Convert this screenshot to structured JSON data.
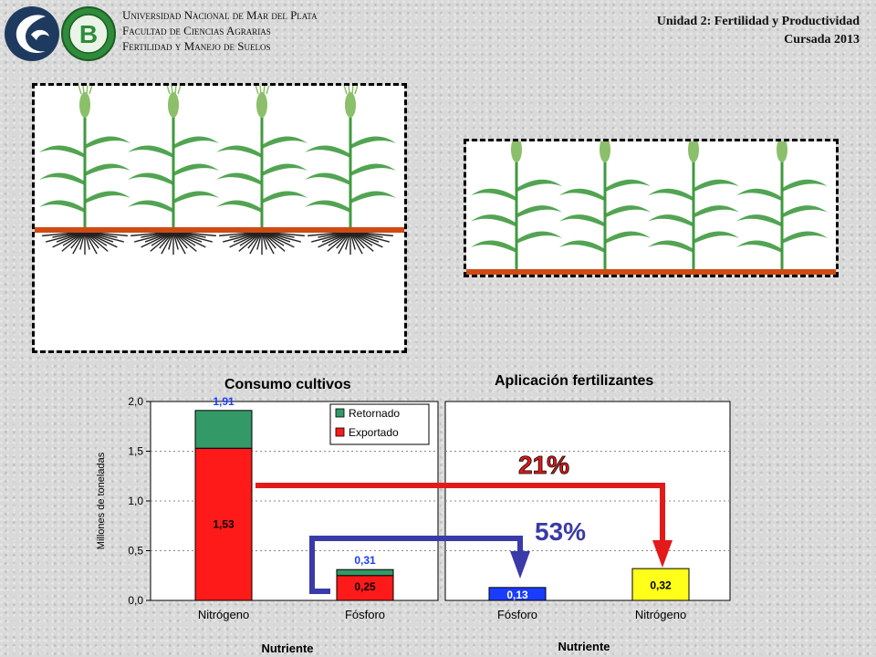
{
  "header": {
    "university": "Universidad Nacional de Mar del Plata",
    "faculty": "Facultad de Ciencias Agrarias",
    "department": "Fertilidad y Manejo de Suelos",
    "unit": "Unidad 2: Fertilidad y Productividad",
    "course": "Cursada 2013"
  },
  "logos": {
    "left": "unmdp-wave-logo",
    "right": "fca-seal-logo",
    "right_letter": "B"
  },
  "illustration": {
    "left_panel": "crop-plants-with-roots",
    "right_panel": "crop-plants-without-roots",
    "plant_color": "#3f9a3f",
    "soil_line_color": "#d04a14"
  },
  "annotations": {
    "arrow_red_label": "21%",
    "arrow_blue_label": "53%",
    "red_color": "#e31a1a",
    "blue_color": "#3a3aa8"
  },
  "chart_data": [
    {
      "type": "bar",
      "title": "Consumo cultivos",
      "xlabel": "Nutriente",
      "ylabel": "Millones de toneladas",
      "ylim": [
        0,
        2.0
      ],
      "yticks": [
        "0,0",
        "0,5",
        "1,0",
        "1,5",
        "2,0"
      ],
      "categories": [
        "Nitrógeno",
        "Fósforo"
      ],
      "stacked": true,
      "series": [
        {
          "name": "Exportado",
          "color": "#ff1a1a",
          "values": [
            1.53,
            0.25
          ],
          "labels": [
            "1,53",
            "0,25"
          ]
        },
        {
          "name": "Retornado",
          "color": "#339966",
          "values": [
            0.38,
            0.06
          ]
        }
      ],
      "totals": [
        "1,91",
        "0,31"
      ],
      "total_values": [
        1.91,
        0.31
      ],
      "legend_position": "top-right",
      "grid": "y"
    },
    {
      "type": "bar",
      "title": "Aplicación fertilizantes",
      "xlabel": "Nutriente",
      "ylim": [
        0,
        2.0
      ],
      "categories": [
        "Fósforo",
        "Nitrógeno"
      ],
      "values": [
        0.13,
        0.32
      ],
      "labels": [
        "0,13",
        "0,32"
      ],
      "colors": [
        "#1a3cff",
        "#ffff1a"
      ],
      "grid": "y"
    }
  ]
}
